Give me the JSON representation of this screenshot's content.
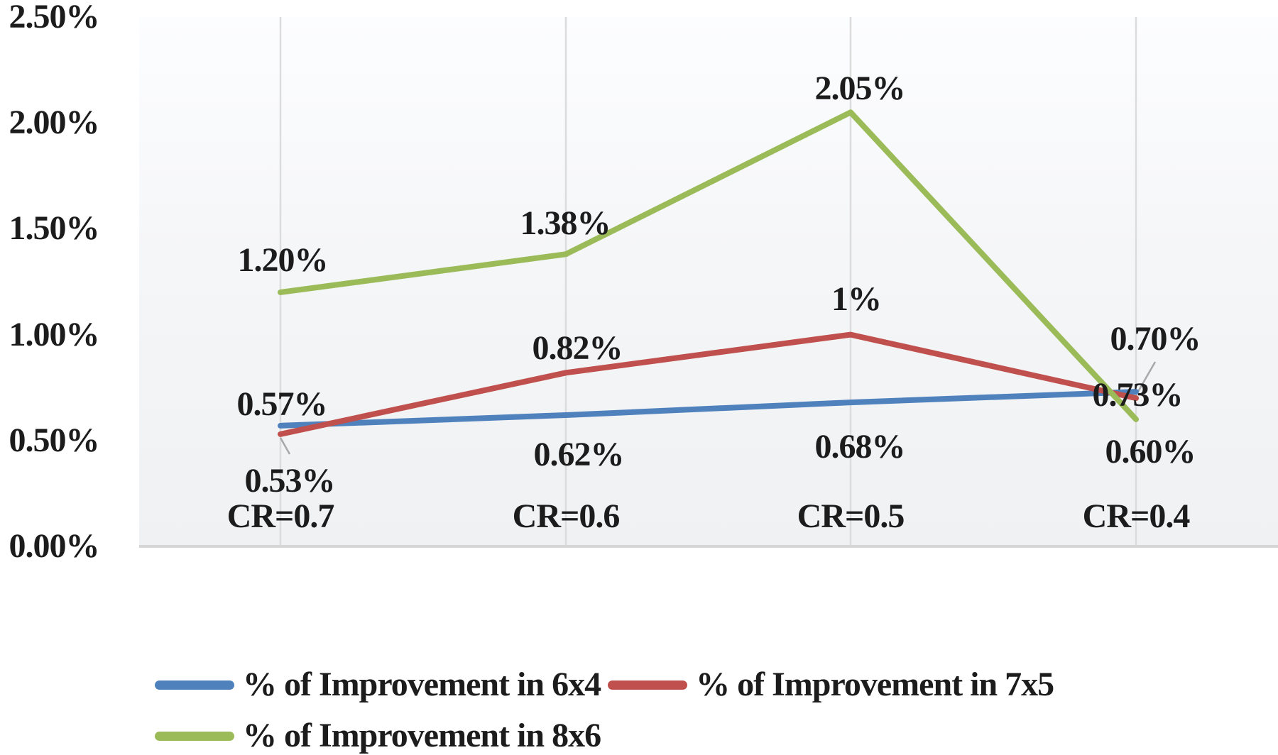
{
  "chart_data": {
    "type": "line",
    "categories": [
      "CR=0.7",
      "CR=0.6",
      "CR=0.5",
      "CR=0.4"
    ],
    "series": [
      {
        "name": "% of Improvement in 6x4",
        "color": "#4F81BD",
        "values": [
          0.57,
          0.62,
          0.68,
          0.73
        ],
        "point_labels": [
          "0.57%",
          "0.62%",
          "0.68%",
          "0.73%"
        ]
      },
      {
        "name": "% of Improvement in 7x5",
        "color": "#C0504D",
        "values": [
          0.53,
          0.82,
          1.0,
          0.7
        ],
        "point_labels": [
          "0.53%",
          "0.82%",
          "1%",
          "0.70%"
        ]
      },
      {
        "name": "% of Improvement in 8x6",
        "color": "#9BBB59",
        "values": [
          1.2,
          1.38,
          2.05,
          0.6
        ],
        "point_labels": [
          "1.20%",
          "1.38%",
          "2.05%",
          "0.60%"
        ]
      }
    ],
    "y_ticks": [
      "0.00%",
      "0.50%",
      "1.00%",
      "1.50%",
      "2.00%",
      "2.50%"
    ],
    "ylim": [
      0,
      2.5
    ],
    "y_step": 0.5,
    "title": "",
    "xlabel": "",
    "ylabel": "",
    "gridlines": "vertical",
    "legend_position": "bottom",
    "colors": {
      "gridline": "#dcdcdc",
      "axis_line": "#d6d6d6",
      "leader_line": "#a8a8a8",
      "text": "#1c1c1c"
    }
  }
}
